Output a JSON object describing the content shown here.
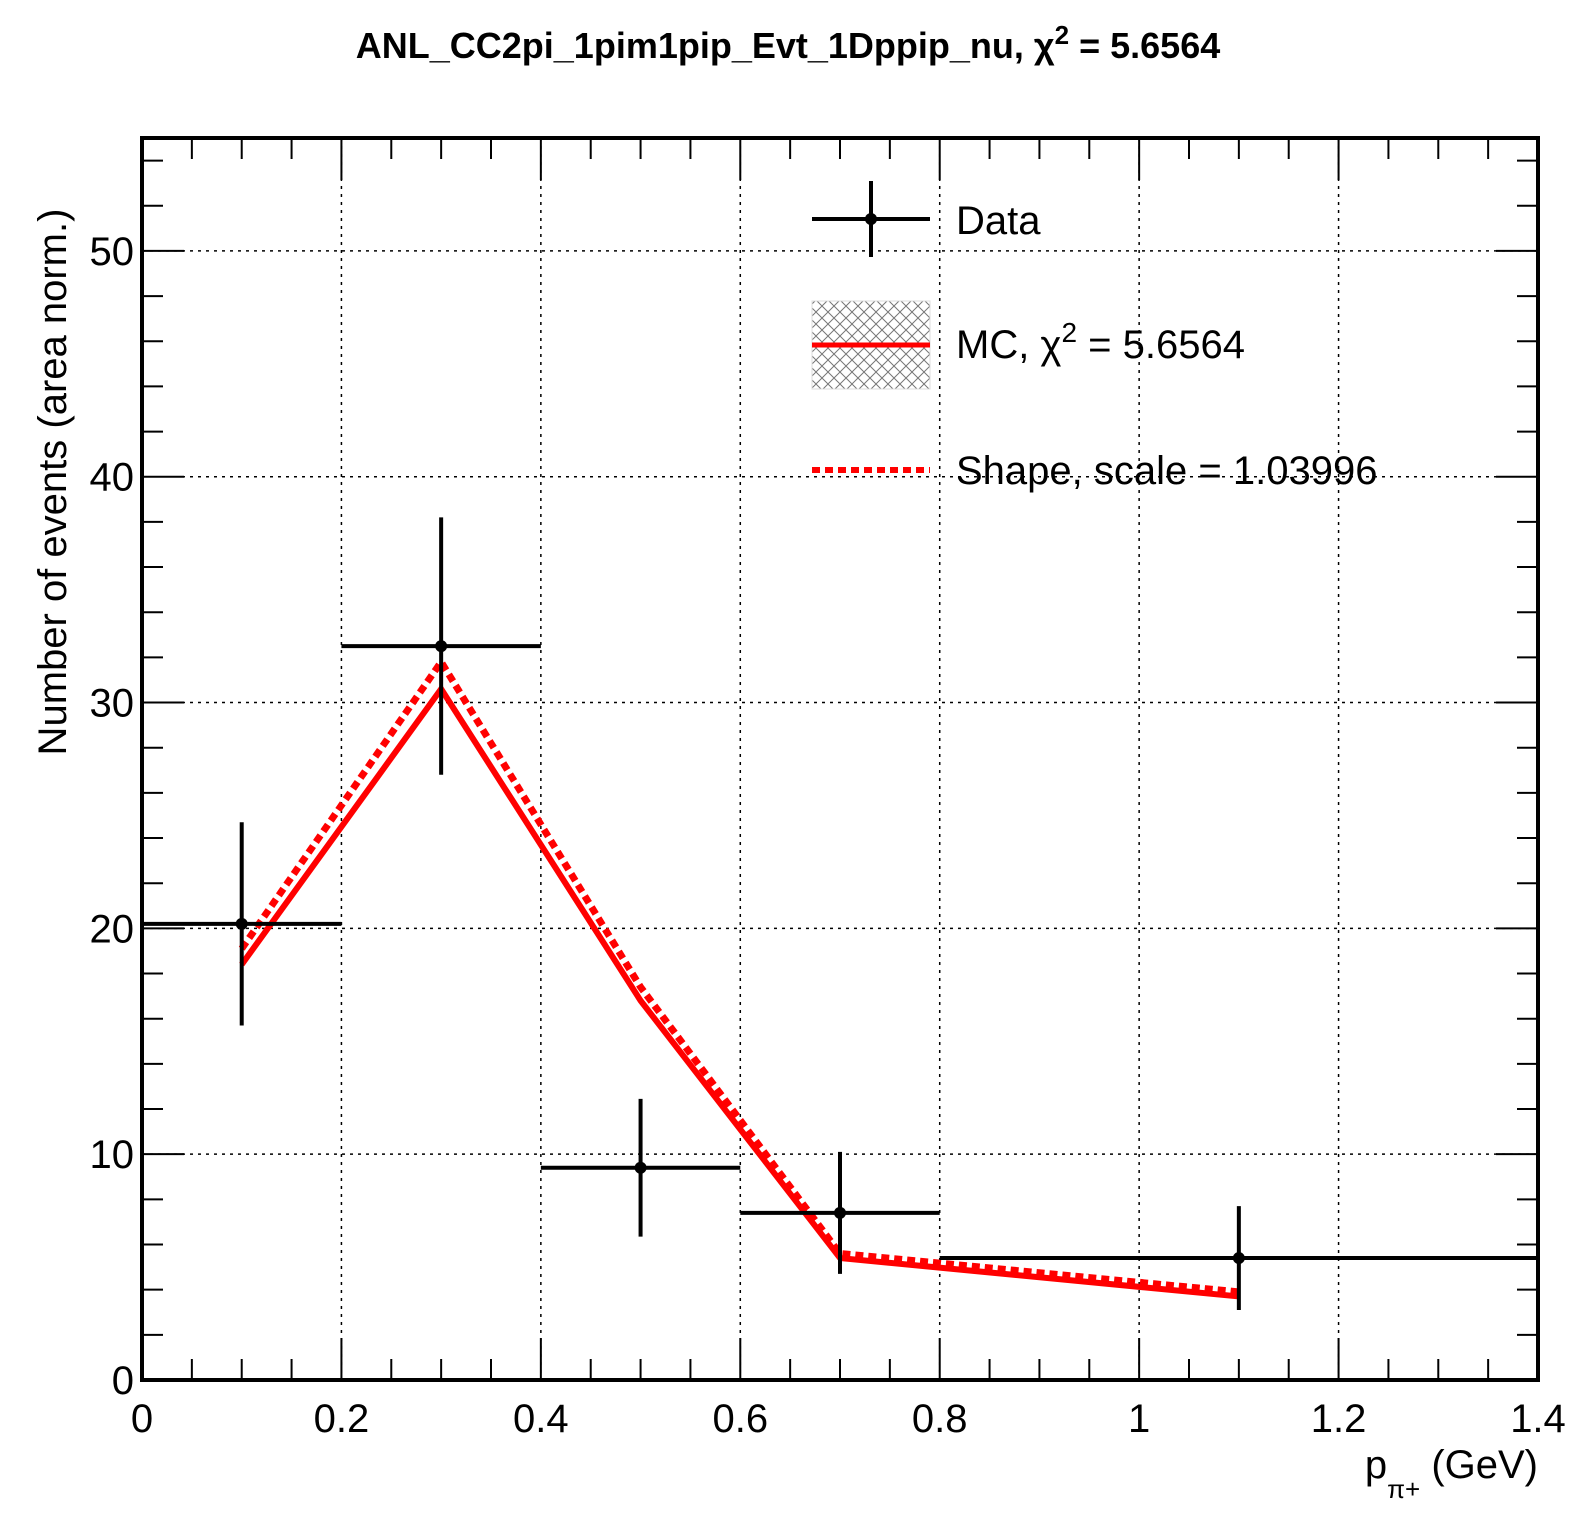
{
  "chart_data": {
    "type": "line",
    "title": "ANL_CC2pi_1pim1pip_Evt_1Dppip_nu, χ² = 5.6564",
    "title_parts": {
      "main": "ANL_CC2pi_1pim1pip_Evt_1Dppip_nu, χ",
      "sup": "2",
      "tail": " = 5.6564"
    },
    "xlabel_parts": {
      "main": "p",
      "sub": "π+",
      "unit": " (GeV)"
    },
    "ylabel": "Number of events (area norm.)",
    "xlim": [
      0,
      1.4
    ],
    "ylim": [
      0,
      55
    ],
    "grid": true,
    "legend_position": "top-right",
    "x_ticks": [
      0,
      0.2,
      0.4,
      0.6,
      0.8,
      1,
      1.2,
      1.4
    ],
    "x_tick_labels": [
      "0",
      "0.2",
      "0.4",
      "0.6",
      "0.8",
      "1",
      "1.2",
      "1.4"
    ],
    "y_ticks": [
      0,
      10,
      20,
      30,
      40,
      50
    ],
    "y_tick_labels": [
      "0",
      "10",
      "20",
      "30",
      "40",
      "50"
    ],
    "series": [
      {
        "name": "Data",
        "style": "points-with-errors",
        "color": "#000000",
        "points": [
          {
            "x": 0.1,
            "y": 20.2,
            "xerr": 0.1,
            "yerr": 4.5
          },
          {
            "x": 0.3,
            "y": 32.5,
            "xerr": 0.1,
            "yerr": 5.7
          },
          {
            "x": 0.5,
            "y": 9.4,
            "xerr": 0.1,
            "yerr": 3.05
          },
          {
            "x": 0.7,
            "y": 7.4,
            "xerr": 0.1,
            "yerr": 2.7
          },
          {
            "x": 1.1,
            "y": 5.4,
            "xerr": 0.3,
            "yerr": 2.3
          }
        ]
      },
      {
        "name": "MC",
        "style": "solid",
        "color": "#ff0000",
        "x": [
          0.1,
          0.3,
          0.5,
          0.7,
          1.1
        ],
        "y": [
          18.4,
          30.6,
          16.8,
          5.4,
          3.7
        ]
      },
      {
        "name": "Shape",
        "style": "dotted",
        "color": "#ff0000",
        "x": [
          0.1,
          0.3,
          0.5,
          0.7,
          1.1
        ],
        "y": [
          19.1,
          31.8,
          17.4,
          5.6,
          3.9
        ]
      }
    ],
    "legend": [
      {
        "key": "data",
        "label": "Data"
      },
      {
        "key": "mc",
        "label_main": "MC, χ",
        "label_sup": "2",
        "label_tail": " = 5.6564"
      },
      {
        "key": "shape",
        "label": "Shape, scale = 1.03996"
      }
    ]
  }
}
